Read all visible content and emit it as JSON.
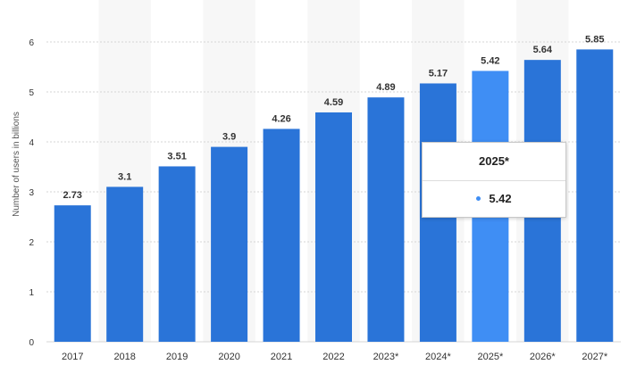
{
  "chart_data": {
    "type": "bar",
    "categories": [
      "2017",
      "2018",
      "2019",
      "2020",
      "2021",
      "2022",
      "2023*",
      "2024*",
      "2025*",
      "2026*",
      "2027*"
    ],
    "values": [
      2.73,
      3.1,
      3.51,
      3.9,
      4.26,
      4.59,
      4.89,
      5.17,
      5.42,
      5.64,
      5.85
    ],
    "value_labels": [
      "2.73",
      "3.1",
      "3.51",
      "3.9",
      "4.26",
      "4.59",
      "4.89",
      "5.17",
      "5.42",
      "5.64",
      "5.85"
    ],
    "ylabel": "Number of users in billions",
    "xlabel": "",
    "ylim": [
      0,
      6
    ],
    "yticks": [
      0,
      1,
      2,
      3,
      4,
      5,
      6
    ],
    "grid": true,
    "highlighted_category": "2025*"
  },
  "colors": {
    "bar": "#2a74d8",
    "bar_highlight": "#3f8ef4",
    "alt_band": "#f7f7f7",
    "grid": "#d6d6d6"
  },
  "tooltip": {
    "title": "2025*",
    "value": "5.42"
  }
}
